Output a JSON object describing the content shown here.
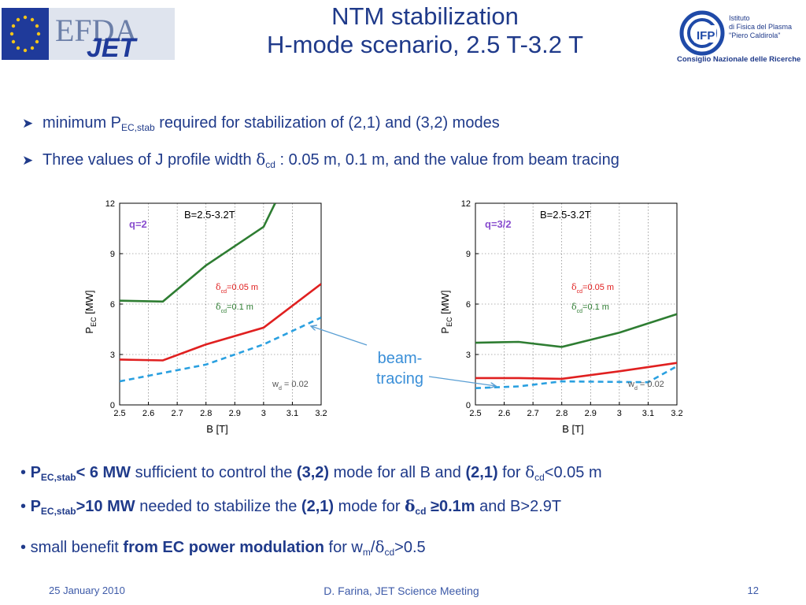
{
  "header": {
    "title_line1": "NTM stabilization",
    "title_line2": "H-mode scenario, 2.5 T-3.2 T",
    "efda_logo_text": "EFDA",
    "jet_logo_text": "JET",
    "ifp_logo_text": "IFP",
    "ifp_line1": "Istituto",
    "ifp_line2": "di Fisica del Plasma",
    "ifp_line3": "\"Piero Caldirola\"",
    "ifp_line4": "Consiglio Nazionale delle Ricerche"
  },
  "bullets_top": {
    "b1_pre": "minimum P",
    "b1_sub": "EC,stab",
    "b1_post": " required for stabilization of (2,1) and (3,2) modes",
    "b2_pre": "Three values of J profile width ",
    "b2_delta": "δ",
    "b2_sub": "cd",
    "b2_post": " : 0.05 m,  0.1 m, and the value from beam tracing"
  },
  "beam_label": {
    "line1": "beam-",
    "line2": "tracing"
  },
  "bullets_bottom": {
    "c1_dot": "•",
    "c1_bold1": "P",
    "c1_sub1": "EC,stab",
    "c1_bold2": "< 6 MW",
    "c1_text1": " sufficient to control the ",
    "c1_bold3": "(3,2)",
    "c1_text2": " mode for all B and ",
    "c1_bold4": "(2,1)",
    "c1_text3": " for ",
    "c1_delta": "δ",
    "c1_sub2": "cd",
    "c1_text4": "<0.05 m",
    "c2_dot": "•",
    "c2_bold1": "P",
    "c2_sub1": "EC,stab",
    "c2_bold2": ">10 MW",
    "c2_text1": " needed to stabilize the ",
    "c2_bold3": "(2,1)",
    "c2_text2": " mode for ",
    "c2_bold4": "δ",
    "c2_sub2": "cd",
    "c2_bold5": " ≥0.1m",
    "c2_text3": " and  B>2.9T",
    "c3_dot": "•",
    "c3_text1": " small benefit ",
    "c3_bold1": "from EC power modulation",
    "c3_text2": " for  w",
    "c3_sub1": "m",
    "c3_text3": "/",
    "c3_delta": "δ",
    "c3_sub2": "cd",
    "c3_text4": ">0.5"
  },
  "footer": {
    "date": "25 January 2010",
    "center": "D. Farina, JET Science Meeting",
    "page": "12"
  },
  "chart_data": [
    {
      "type": "line",
      "mode_label": "q=2",
      "field_label": "B=2.5-3.2T",
      "xlabel": "B  [T]",
      "ylabel_main": "P",
      "ylabel_sub": "EC",
      "ylabel_unit": "[MW]",
      "xlim": [
        2.5,
        3.2
      ],
      "ylim": [
        0,
        12
      ],
      "xticks": [
        "2.5",
        "2.6",
        "2.7",
        "2.8",
        "2.9",
        "3",
        "3.1",
        "3.2"
      ],
      "yticks": [
        "0",
        "3",
        "6",
        "9",
        "12"
      ],
      "grid": true,
      "legend_red": {
        "delta": "δ",
        "sub": "cd",
        "text": "=0.05 m"
      },
      "legend_green": {
        "delta": "δ",
        "sub": "cd",
        "text": "=0.1 m"
      },
      "annotation": {
        "w": "w",
        "sub": "d",
        "text": " = 0.02"
      },
      "series": [
        {
          "color": "#2e7d32",
          "dashed": false,
          "x": [
            2.5,
            2.65,
            2.8,
            3.0,
            3.04
          ],
          "y": [
            6.2,
            6.15,
            8.3,
            10.6,
            12.0
          ]
        },
        {
          "color": "#e02020",
          "dashed": false,
          "x": [
            2.5,
            2.65,
            2.8,
            3.0,
            3.2
          ],
          "y": [
            2.7,
            2.65,
            3.6,
            4.6,
            7.2
          ]
        },
        {
          "color": "#2aa0e0",
          "dashed": true,
          "x": [
            2.5,
            2.8,
            3.0,
            3.2
          ],
          "y": [
            1.4,
            2.4,
            3.6,
            5.2
          ]
        }
      ]
    },
    {
      "type": "line",
      "mode_label": "q=3/2",
      "field_label": "B=2.5-3.2T",
      "xlabel": "B  [T]",
      "ylabel_main": "P",
      "ylabel_sub": "EC",
      "ylabel_unit": "[MW]",
      "xlim": [
        2.5,
        3.2
      ],
      "ylim": [
        0,
        12
      ],
      "xticks": [
        "2.5",
        "2.6",
        "2.7",
        "2.8",
        "2.9",
        "3",
        "3.1",
        "3.2"
      ],
      "yticks": [
        "0",
        "3",
        "6",
        "9",
        "12"
      ],
      "grid": true,
      "legend_red": {
        "delta": "δ",
        "sub": "cd",
        "text": "=0.05 m"
      },
      "legend_green": {
        "delta": "δ",
        "sub": "cd",
        "text": "=0.1 m"
      },
      "annotation": {
        "w": "w",
        "sub": "d",
        "text": " = 0.02"
      },
      "series": [
        {
          "color": "#2e7d32",
          "dashed": false,
          "x": [
            2.5,
            2.65,
            2.8,
            3.0,
            3.2
          ],
          "y": [
            3.7,
            3.75,
            3.45,
            4.3,
            5.4
          ]
        },
        {
          "color": "#e02020",
          "dashed": false,
          "x": [
            2.5,
            2.65,
            2.8,
            3.0,
            3.2
          ],
          "y": [
            1.6,
            1.6,
            1.55,
            2.0,
            2.5
          ]
        },
        {
          "color": "#2aa0e0",
          "dashed": true,
          "x": [
            2.5,
            2.65,
            2.8,
            3.1,
            3.2
          ],
          "y": [
            1.0,
            1.1,
            1.4,
            1.35,
            2.3
          ]
        }
      ]
    }
  ]
}
